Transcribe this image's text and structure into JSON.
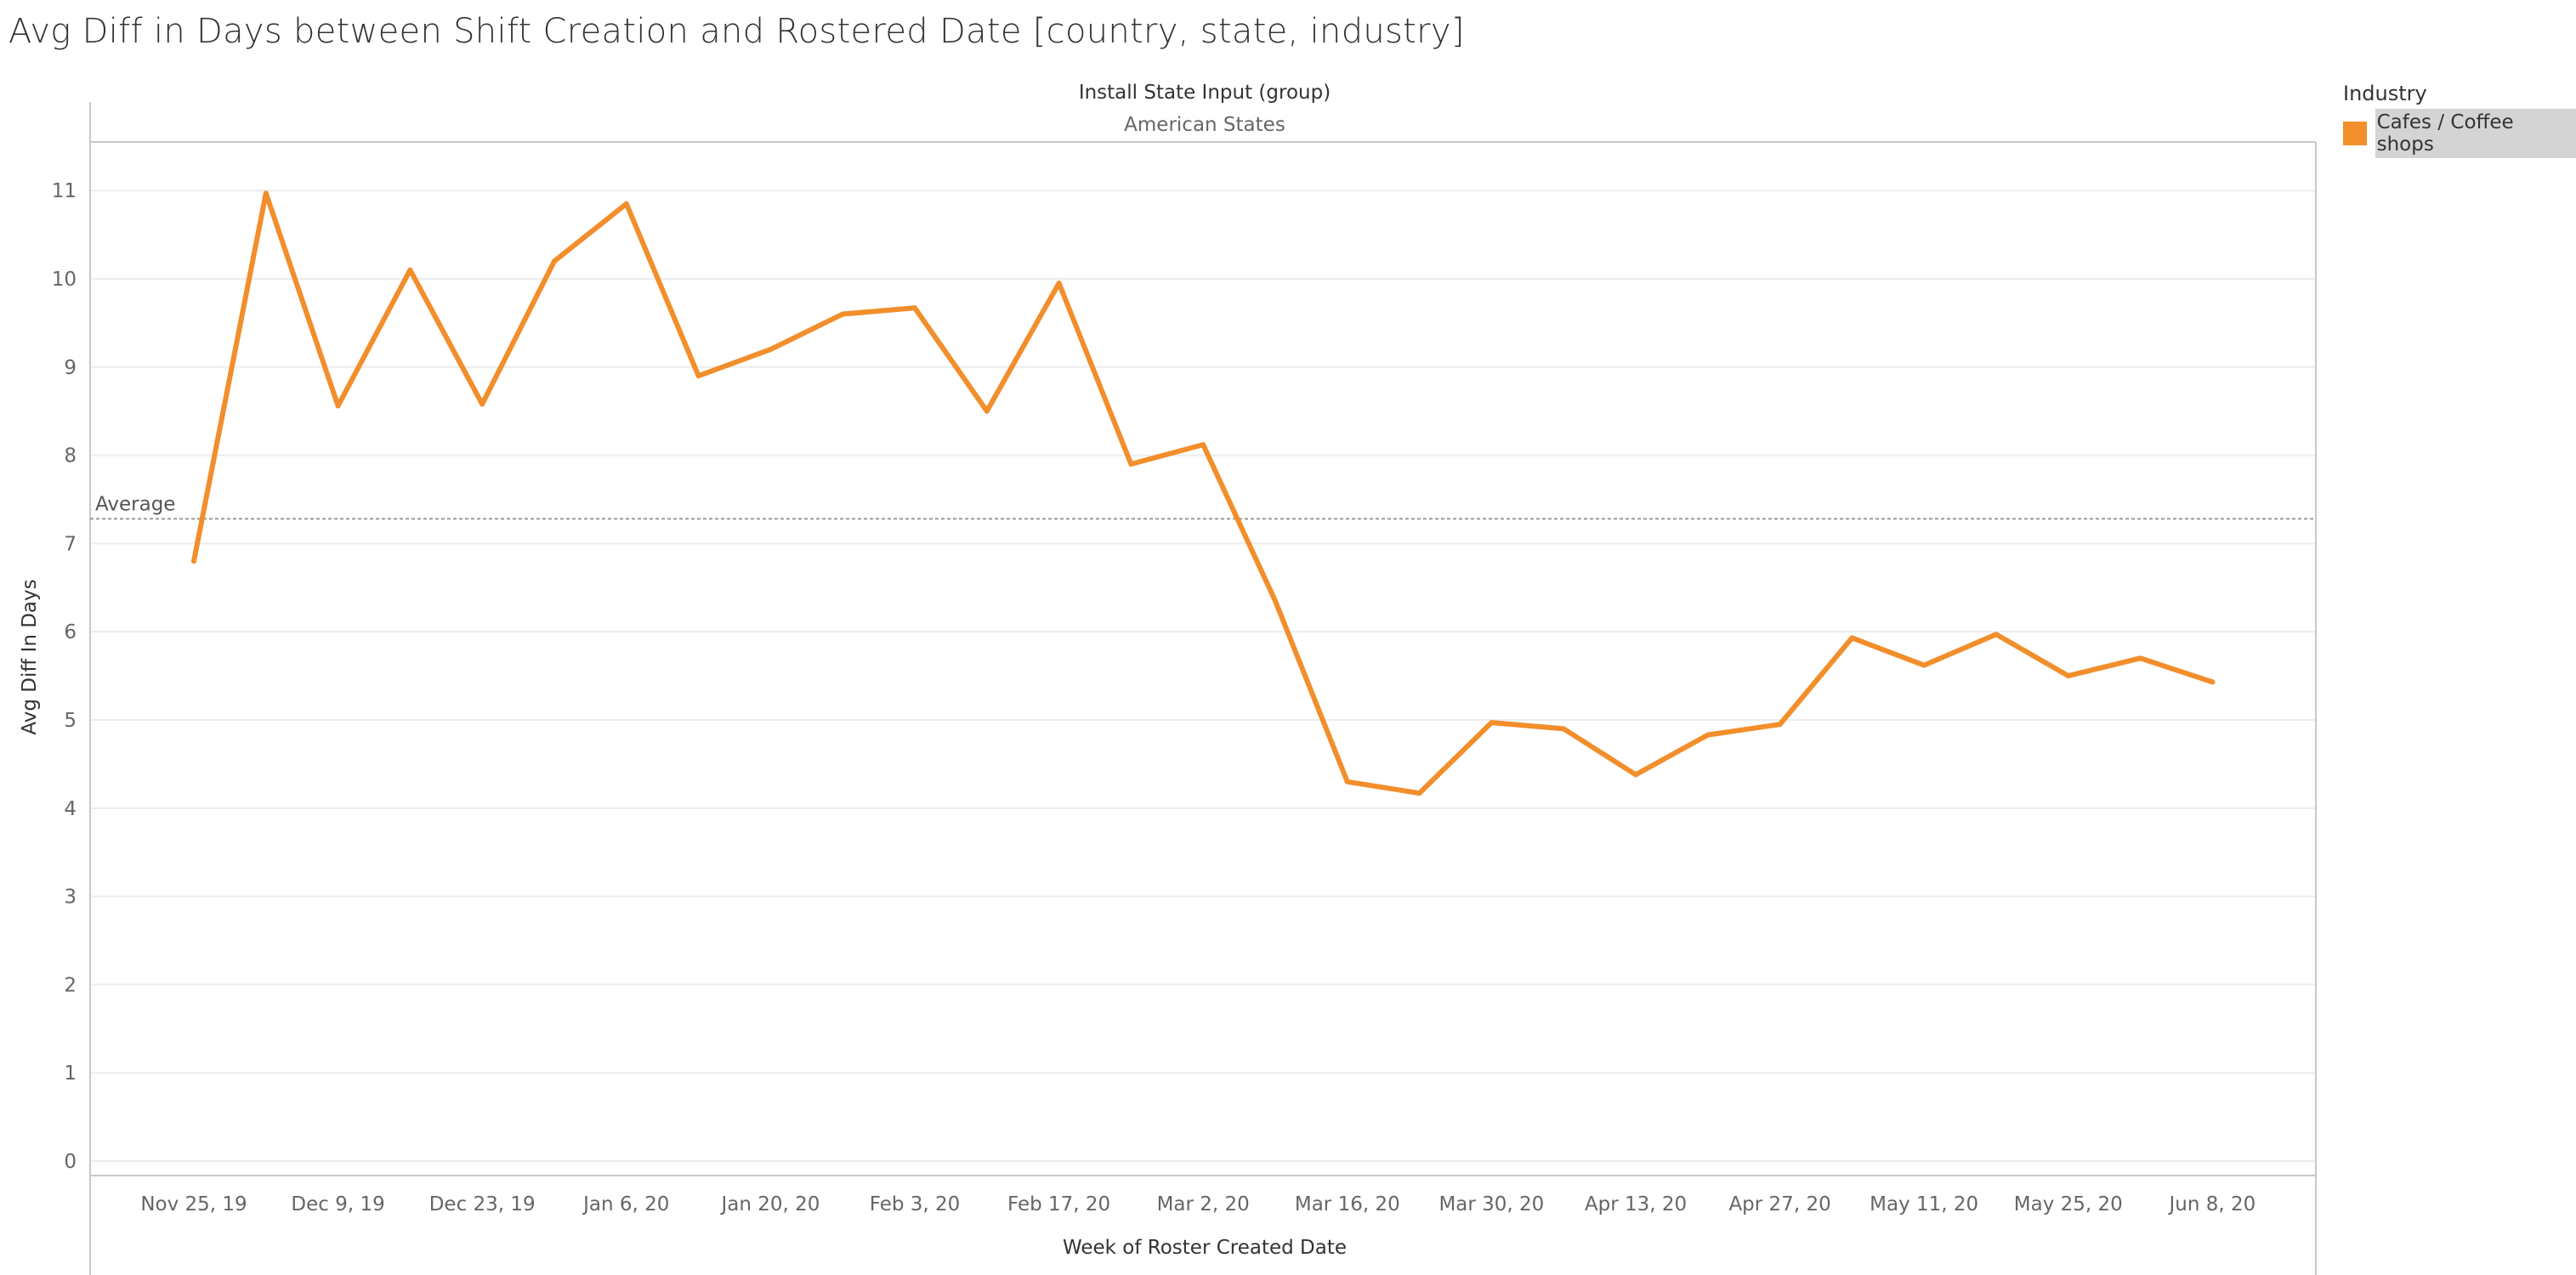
{
  "title": "Avg Diff in Days between Shift Creation and Rostered Date [country, state, industry]",
  "legend": {
    "title": "Industry",
    "items": [
      {
        "label": "Cafes / Coffee shops",
        "color": "#F28E2B"
      }
    ]
  },
  "chart_data": {
    "type": "line",
    "panel_header": "Install State Input (group)",
    "panel_label": "American States",
    "xlabel": "Week of Roster Created Date",
    "ylabel": "Avg Diff In Days",
    "ylim": [
      0,
      11.5
    ],
    "yticks": [
      0,
      1,
      2,
      3,
      4,
      5,
      6,
      7,
      8,
      9,
      10,
      11
    ],
    "xtick_labels": [
      "Nov 25, 19",
      "Dec 9, 19",
      "Dec 23, 19",
      "Jan 6, 20",
      "Jan 20, 20",
      "Feb 3, 20",
      "Feb 17, 20",
      "Mar 2, 20",
      "Mar 16, 20",
      "Mar 30, 20",
      "Apr 13, 20",
      "Apr 27, 20",
      "May 11, 20",
      "May 25, 20",
      "Jun 8, 20"
    ],
    "grid": true,
    "legend_position": "right",
    "reference_line": {
      "label": "Average",
      "value": 7.28
    },
    "series": [
      {
        "name": "Cafes / Coffee shops",
        "color": "#F28E2B",
        "x": [
          "Nov 25, 19",
          "Dec 2, 19",
          "Dec 9, 19",
          "Dec 16, 19",
          "Dec 23, 19",
          "Dec 30, 19",
          "Jan 6, 20",
          "Jan 13, 20",
          "Jan 20, 20",
          "Jan 27, 20",
          "Feb 3, 20",
          "Feb 10, 20",
          "Feb 17, 20",
          "Feb 24, 20",
          "Mar 2, 20",
          "Mar 9, 20",
          "Mar 16, 20",
          "Mar 23, 20",
          "Mar 30, 20",
          "Apr 6, 20",
          "Apr 13, 20",
          "Apr 20, 20",
          "Apr 27, 20",
          "May 4, 20",
          "May 11, 20",
          "May 18, 20",
          "May 25, 20",
          "Jun 1, 20",
          "Jun 8, 20"
        ],
        "values": [
          6.8,
          10.97,
          8.56,
          10.1,
          8.58,
          10.2,
          10.85,
          8.9,
          9.2,
          9.6,
          9.67,
          8.5,
          9.95,
          7.9,
          8.12,
          6.35,
          4.3,
          4.17,
          4.97,
          4.9,
          4.38,
          4.83,
          4.95,
          5.93,
          5.62,
          5.97,
          5.5,
          5.7,
          5.43
        ]
      }
    ]
  }
}
